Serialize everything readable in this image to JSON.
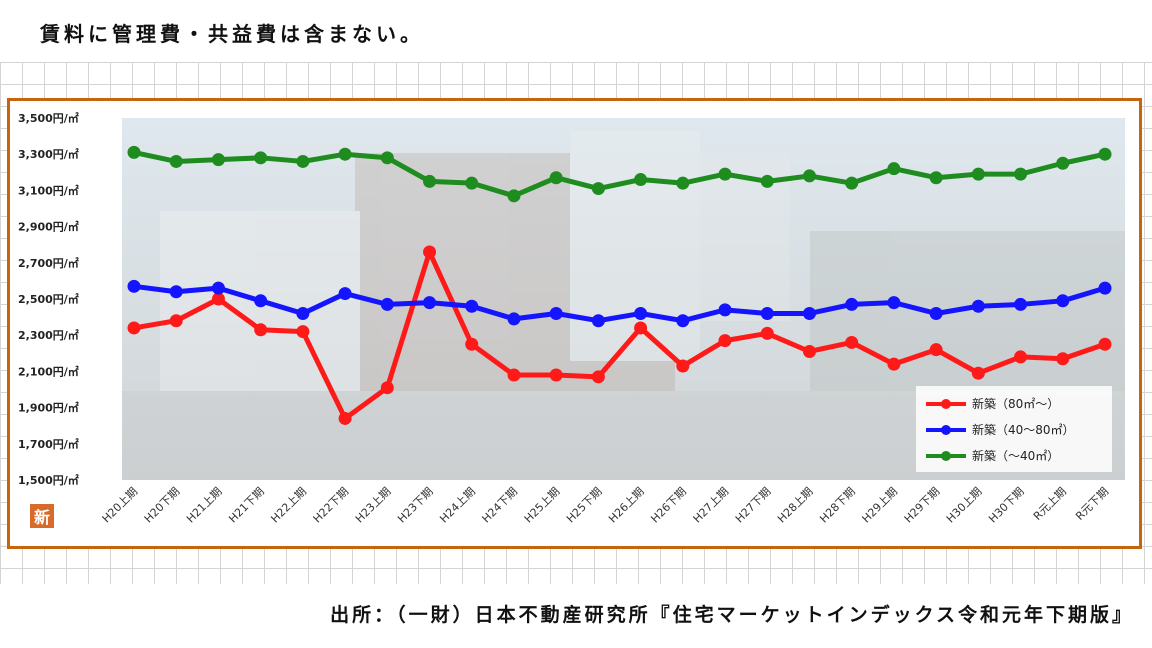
{
  "header": {
    "note": "賃料に管理費・共益費は含まない。"
  },
  "footer": {
    "source": "出所：（一財）日本不動産研究所『住宅マーケットインデックス令和元年下期版』"
  },
  "logo_char": "新",
  "colors": {
    "frame": "#c8640c",
    "red": "#ff1a1a",
    "blue": "#1414ff",
    "green": "#1e8c1e"
  },
  "chart_data": {
    "type": "line",
    "title": "",
    "xlabel": "",
    "ylabel": "",
    "ylim": [
      1500,
      3500
    ],
    "yticks": [
      "3,500円/㎡",
      "3,300円/㎡",
      "3,100円/㎡",
      "2,900円/㎡",
      "2,700円/㎡",
      "2,500円/㎡",
      "2,300円/㎡",
      "2,100円/㎡",
      "1,900円/㎡",
      "1,700円/㎡",
      "1,500円/㎡"
    ],
    "ytick_values": [
      3500,
      3300,
      3100,
      2900,
      2700,
      2500,
      2300,
      2100,
      1900,
      1700,
      1500
    ],
    "categories": [
      "H20上期",
      "H20下期",
      "H21上期",
      "H21下期",
      "H22上期",
      "H22下期",
      "H23上期",
      "H23下期",
      "H24上期",
      "H24下期",
      "H25上期",
      "H25下期",
      "H26上期",
      "H26下期",
      "H27上期",
      "H27下期",
      "H28上期",
      "H28下期",
      "H29上期",
      "H29下期",
      "H30上期",
      "H30下期",
      "R元上期",
      "R元下期"
    ],
    "legend_position": "bottom-right",
    "series": [
      {
        "name": "新築（80㎡～）",
        "color": "#ff1a1a",
        "values": [
          2340,
          2380,
          2500,
          2330,
          2320,
          1840,
          2010,
          2760,
          2250,
          2080,
          2080,
          2070,
          2340,
          2130,
          2270,
          2310,
          2210,
          2260,
          2140,
          2220,
          2090,
          2180,
          2170,
          2250
        ]
      },
      {
        "name": "新築（40～80㎡）",
        "color": "#1414ff",
        "values": [
          2570,
          2540,
          2560,
          2490,
          2420,
          2530,
          2470,
          2480,
          2460,
          2390,
          2420,
          2380,
          2420,
          2380,
          2440,
          2420,
          2420,
          2470,
          2480,
          2420,
          2460,
          2470,
          2490,
          2560
        ]
      },
      {
        "name": "新築（～40㎡）",
        "color": "#1e8c1e",
        "values": [
          3310,
          3260,
          3270,
          3280,
          3260,
          3300,
          3280,
          3150,
          3140,
          3070,
          3170,
          3110,
          3160,
          3140,
          3190,
          3150,
          3180,
          3140,
          3220,
          3170,
          3190,
          3190,
          3250,
          3300
        ]
      }
    ]
  }
}
